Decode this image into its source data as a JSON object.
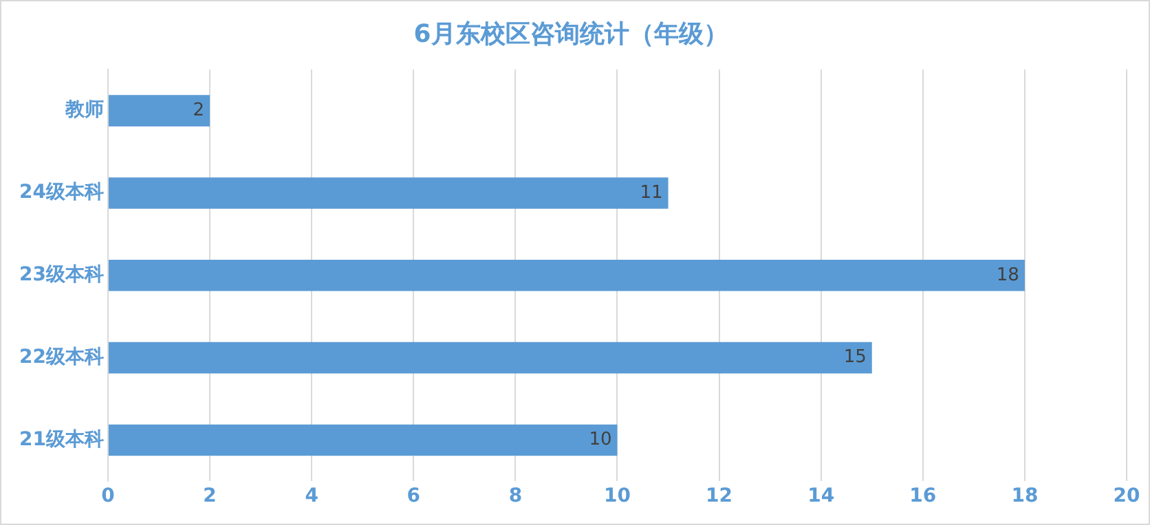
{
  "chart_data": {
    "type": "bar",
    "orientation": "horizontal",
    "title": "6月东校区咨询统计（年级）",
    "categories": [
      "教师",
      "24级本科",
      "23级本科",
      "22级本科",
      "21级本科"
    ],
    "values": [
      2,
      11,
      18,
      15,
      10
    ],
    "color": "#5b9bd5",
    "xlim": [
      0,
      20
    ],
    "xticks": [
      0,
      2,
      4,
      6,
      8,
      10,
      12,
      14,
      16,
      18,
      20
    ],
    "grid": "x",
    "data_labels": true,
    "legend": false
  }
}
